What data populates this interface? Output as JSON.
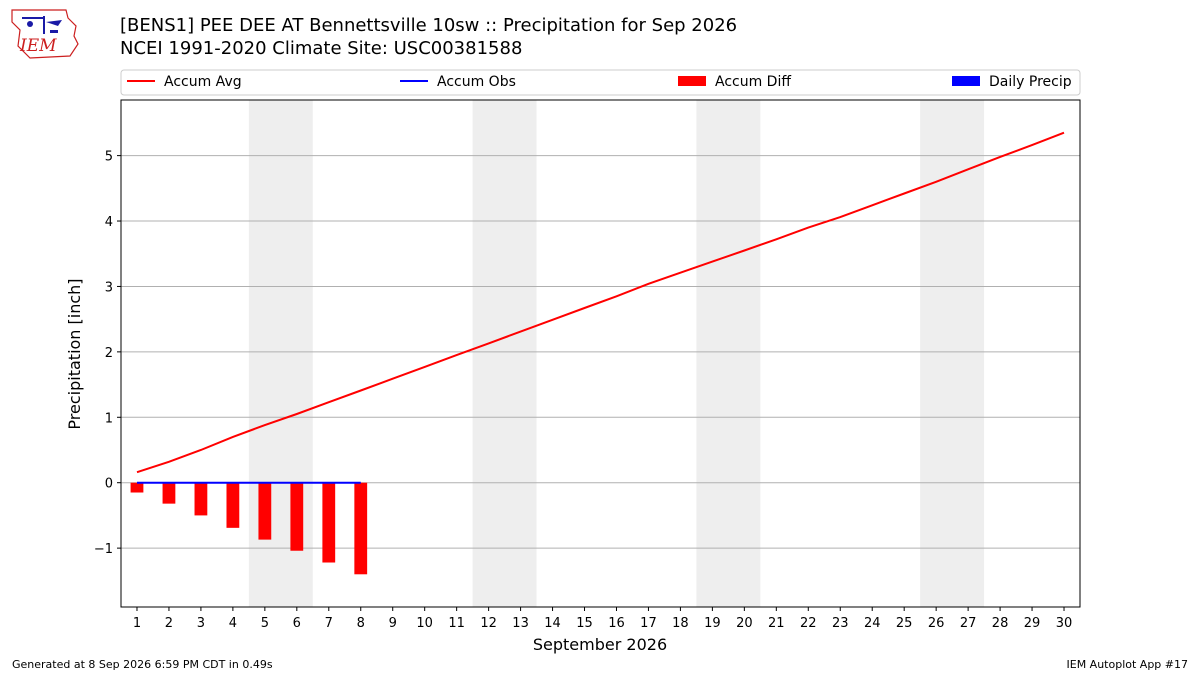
{
  "header": {
    "title_line1": "[BENS1] PEE DEE  AT Bennettsville 10sw :: Precipitation for Sep 2026",
    "title_line2": "NCEI 1991-2020 Climate Site: USC00381588",
    "logo_text": "IEM"
  },
  "footer": {
    "generated": "Generated at 8 Sep 2026 6:59 PM CDT in 0.49s",
    "app": "IEM Autoplot App #17"
  },
  "colors": {
    "accum_avg": "#ff0000",
    "accum_obs": "#0000ff",
    "accum_diff": "#ff0000",
    "daily_precip": "#0000ff",
    "weekend_shade": "#eeeeee",
    "grid": "#b0b0b0"
  },
  "chart_data": {
    "type": "bar",
    "xlabel": "September 2026",
    "ylabel": "Precipitation [inch]",
    "x": [
      1,
      2,
      3,
      4,
      5,
      6,
      7,
      8,
      9,
      10,
      11,
      12,
      13,
      14,
      15,
      16,
      17,
      18,
      19,
      20,
      21,
      22,
      23,
      24,
      25,
      26,
      27,
      28,
      29,
      30
    ],
    "xlim": [
      0.5,
      30.5
    ],
    "ylim": [
      -1.9,
      5.85
    ],
    "yticks": [
      -1,
      0,
      1,
      2,
      3,
      4,
      5
    ],
    "ytick_labels": [
      "−1",
      "0",
      "1",
      "2",
      "3",
      "4",
      "5"
    ],
    "grid": true,
    "legend": {
      "placement": "top",
      "entries": [
        {
          "label": "Accum Avg",
          "kind": "line",
          "color": "#ff0000"
        },
        {
          "label": "Accum Obs",
          "kind": "line",
          "color": "#0000ff"
        },
        {
          "label": "Accum Diff",
          "kind": "bar",
          "color": "#ff0000"
        },
        {
          "label": "Daily Precip",
          "kind": "bar",
          "color": "#0000ff"
        }
      ]
    },
    "weekend_spans": [
      [
        4.5,
        6.5
      ],
      [
        11.5,
        13.5
      ],
      [
        18.5,
        20.5
      ],
      [
        25.5,
        27.5
      ]
    ],
    "series": [
      {
        "name": "Accum Avg",
        "type": "line",
        "x": [
          1,
          2,
          3,
          4,
          5,
          6,
          7,
          8,
          9,
          10,
          11,
          12,
          13,
          14,
          15,
          16,
          17,
          18,
          19,
          20,
          21,
          22,
          23,
          24,
          25,
          26,
          27,
          28,
          29,
          30
        ],
        "values": [
          0.16,
          0.32,
          0.5,
          0.7,
          0.88,
          1.05,
          1.23,
          1.41,
          1.59,
          1.77,
          1.95,
          2.13,
          2.31,
          2.49,
          2.67,
          2.85,
          3.04,
          3.21,
          3.38,
          3.55,
          3.72,
          3.9,
          4.06,
          4.24,
          4.42,
          4.6,
          4.79,
          4.98,
          5.16,
          5.35
        ]
      },
      {
        "name": "Accum Obs",
        "type": "line",
        "x": [
          1,
          2,
          3,
          4,
          5,
          6,
          7,
          8
        ],
        "values": [
          0,
          0,
          0,
          0,
          0,
          0,
          0,
          0
        ]
      },
      {
        "name": "Accum Diff",
        "type": "bar",
        "x": [
          1,
          2,
          3,
          4,
          5,
          6,
          7,
          8
        ],
        "values": [
          -0.15,
          -0.32,
          -0.5,
          -0.69,
          -0.87,
          -1.04,
          -1.22,
          -1.4
        ]
      },
      {
        "name": "Daily Precip",
        "type": "bar",
        "x": [
          1,
          2,
          3,
          4,
          5,
          6,
          7,
          8
        ],
        "values": [
          0,
          0,
          0,
          0,
          0,
          0,
          0,
          0
        ]
      }
    ]
  }
}
